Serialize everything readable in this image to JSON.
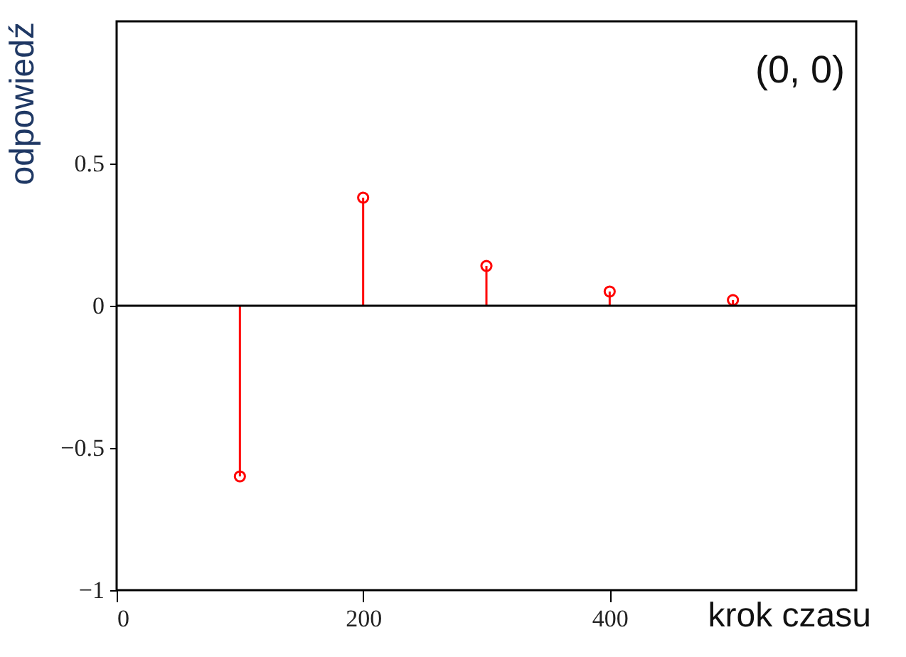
{
  "chart_data": {
    "type": "lollipop",
    "xlabel": "krok czasu",
    "ylabel": "odpowiedź",
    "annotations": [
      "(0, 0)"
    ],
    "x": [
      100,
      200,
      300,
      400,
      500
    ],
    "series": [
      {
        "color": "#ff0000",
        "values": [
          -0.6,
          0.38,
          0.14,
          0.05,
          0.02
        ]
      }
    ],
    "xlim": [
      0,
      600
    ],
    "xticks": [
      0,
      200,
      400
    ],
    "ylim": [
      -1,
      1
    ],
    "yticks": [
      {
        "value": -1,
        "label": "−1"
      },
      {
        "value": -0.5,
        "label": "−0.5"
      },
      {
        "value": 0,
        "label": "0"
      },
      {
        "value": 0.5,
        "label": "0.5"
      }
    ],
    "ref_lines": [
      {
        "axis": "y",
        "value": 0,
        "color": "#000000"
      }
    ],
    "marker": "circle",
    "grid": false
  }
}
